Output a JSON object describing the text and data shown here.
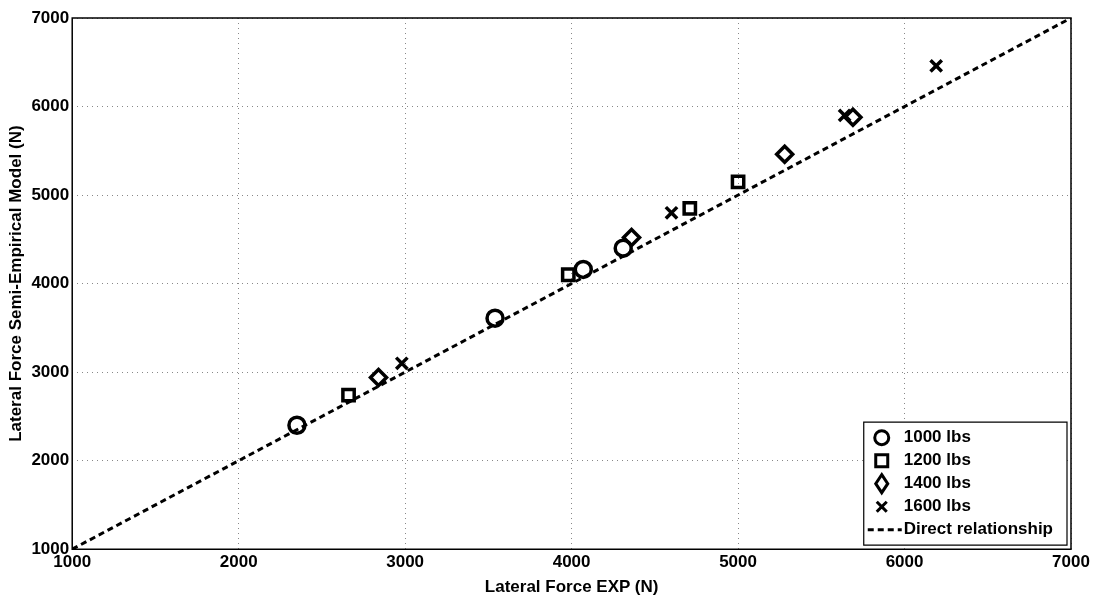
{
  "chart_data": {
    "type": "scatter",
    "xlabel": "Lateral Force EXP (N)",
    "ylabel": "Lateral Force Semi-Empirical Model (N)",
    "xlim": [
      1000,
      7000
    ],
    "xticks": [
      1000,
      2000,
      3000,
      4000,
      5000,
      6000,
      7000
    ],
    "ylim": [
      1000,
      7000
    ],
    "yticks": [
      1000,
      2000,
      3000,
      4000,
      5000,
      6000,
      7000
    ],
    "grid": true,
    "legend": "bottom right",
    "series": [
      {
        "name": "1000 lbs",
        "color": "#000000",
        "marker": "circle",
        "x": [
          2350,
          3540,
          4070,
          4310
        ],
        "values": [
          2400,
          3610,
          4160,
          4400
        ]
      },
      {
        "name": "1200 lbs",
        "color": "#000000",
        "marker": "square",
        "x": [
          2660,
          3980,
          4710,
          5000
        ],
        "values": [
          2740,
          4100,
          4850,
          5150
        ]
      },
      {
        "name": "1400 lbs",
        "color": "#000000",
        "marker": "diamond",
        "x": [
          2840,
          4360,
          5280,
          5690
        ],
        "values": [
          2940,
          4520,
          5460,
          5880
        ]
      },
      {
        "name": "1600 lbs",
        "color": "#000000",
        "marker": "cross",
        "x": [
          2980,
          4600,
          5640,
          6190
        ],
        "values": [
          3100,
          4800,
          5900,
          6460
        ]
      },
      {
        "name": "Direct relationship",
        "type": "line",
        "color": "#000000",
        "marker": "none",
        "line_style": "dashed",
        "x": [
          1000,
          7000
        ],
        "values": [
          1000,
          7000
        ]
      }
    ]
  }
}
